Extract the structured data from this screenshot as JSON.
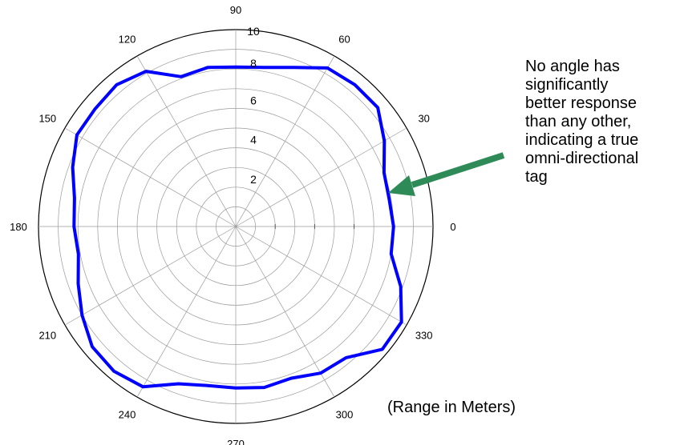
{
  "chart_data": {
    "type": "polar-line",
    "radial_ticks": [
      "2",
      "4",
      "6",
      "8",
      "10"
    ],
    "angle_ticks": [
      "0",
      "30",
      "60",
      "90",
      "120",
      "150",
      "180",
      "210",
      "240",
      "270",
      "300",
      "330"
    ],
    "rlim": [
      0,
      10
    ],
    "grid": true,
    "line_color": "#0000ff",
    "arrow_color": "#2e8b57",
    "series": [
      {
        "angles": [
          0,
          10,
          20,
          30,
          40,
          50,
          60,
          70,
          80,
          90,
          100,
          110,
          120,
          130,
          140,
          150,
          160,
          170,
          180,
          190,
          200,
          210,
          220,
          230,
          240,
          250,
          260,
          270,
          280,
          290,
          300,
          310,
          320,
          330,
          340,
          350
        ],
        "values": [
          8.0,
          7.9,
          8.0,
          8.7,
          9.4,
          9.4,
          9.3,
          8.6,
          8.2,
          8.1,
          8.2,
          8.1,
          9.1,
          9.4,
          9.3,
          9.3,
          8.8,
          8.3,
          8.2,
          8.1,
          8.5,
          9.0,
          9.5,
          9.6,
          9.4,
          8.5,
          8.2,
          8.2,
          8.3,
          8.2,
          8.6,
          8.7,
          9.7,
          9.7,
          8.9,
          8.0
        ]
      }
    ]
  },
  "annotation": "No angle has significantly\nbetter response\nthan any other,\nindicating a true\nomni-directional\ntag",
  "units_label": "(Range in Meters)"
}
